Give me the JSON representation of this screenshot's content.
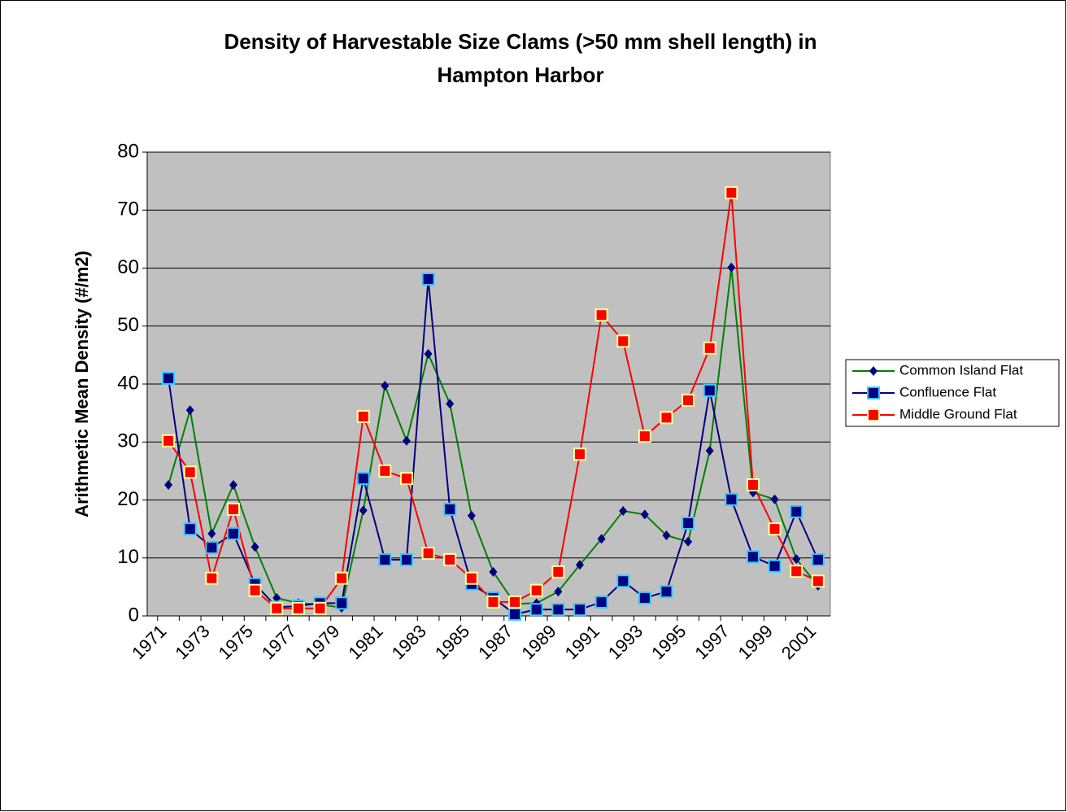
{
  "chart_data": {
    "type": "line",
    "title": [
      "Density of Harvestable Size Clams (>50 mm shell length) in",
      "Hampton Harbor"
    ],
    "y_label": "Arithmetic Mean Density (#/m2)",
    "categories": [
      "1971",
      null,
      "1973",
      null,
      "1975",
      null,
      "1977",
      null,
      "1979",
      null,
      "1981",
      null,
      "1983",
      null,
      "1985",
      null,
      "1987",
      null,
      "1989",
      null,
      "1991",
      null,
      "1993",
      null,
      "1995",
      null,
      "1997",
      null,
      "1999",
      null,
      "2001"
    ],
    "ylim": [
      0,
      80
    ],
    "yticks": [
      0,
      10,
      20,
      30,
      40,
      50,
      60,
      70,
      80
    ],
    "grid": true,
    "legend": "right",
    "plot_background": "#c0c0c0",
    "series": [
      {
        "name": "Common Island Flat",
        "color": "#008000",
        "marker": "diamond",
        "marker_fill": "#000080",
        "marker_edge": "#000080",
        "values": [
          22.6,
          35.5,
          14.2,
          22.6,
          11.9,
          3.1,
          2.2,
          2.0,
          1.4,
          18.2,
          39.7,
          30.2,
          45.2,
          36.6,
          17.3,
          7.6,
          2.1,
          2.2,
          4.2,
          8.8,
          13.3,
          18.1,
          17.5,
          13.9,
          12.8,
          28.5,
          60.1,
          21.3,
          20.1,
          9.8,
          5.2
        ]
      },
      {
        "name": "Confluence Flat",
        "color": "#000080",
        "marker": "square",
        "marker_fill": "#000080",
        "marker_edge": "#33ccff",
        "values": [
          41.0,
          15.0,
          11.8,
          14.2,
          5.5,
          1.5,
          1.7,
          2.2,
          2.2,
          23.7,
          9.7,
          9.7,
          58.1,
          18.4,
          5.5,
          3.1,
          0.3,
          1.1,
          1.1,
          1.1,
          2.4,
          6.0,
          3.1,
          4.2,
          16.0,
          38.9,
          20.1,
          10.2,
          8.6,
          18.0,
          9.7
        ]
      },
      {
        "name": "Middle Ground Flat",
        "color": "#ff0000",
        "marker": "square",
        "marker_fill": "#ff0000",
        "marker_edge": "#ffff99",
        "values": [
          30.2,
          24.8,
          6.5,
          18.4,
          4.4,
          1.3,
          1.3,
          1.3,
          6.5,
          34.4,
          25.0,
          23.7,
          10.8,
          9.7,
          6.5,
          2.4,
          2.4,
          4.4,
          7.6,
          27.9,
          51.9,
          47.4,
          31.0,
          34.2,
          37.2,
          46.2,
          73.0,
          22.6,
          15.0,
          7.7,
          6.0
        ]
      }
    ]
  }
}
